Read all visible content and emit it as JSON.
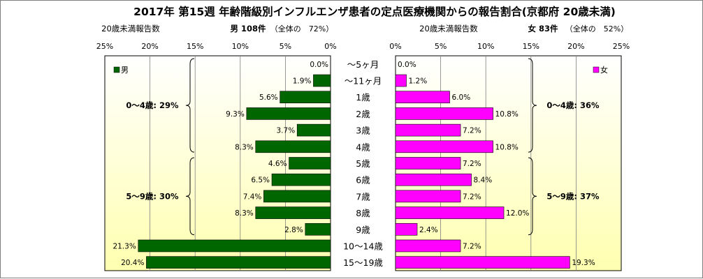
{
  "title": "2017年 第15週 年齢階級別インフルエンザ患者の定点医療機関からの報告割合(京都府 20歳未満)",
  "colors": {
    "male_bar": "#006600",
    "female_bar": "#ff00ff",
    "panel_top": "#ffffff",
    "panel_bottom": "#ffffb0",
    "frame": "#000000"
  },
  "chart_data": {
    "type": "bar",
    "orientation": "horizontal",
    "layout": "population-pyramid",
    "categories": [
      "～5ヶ月",
      "～11ヶ月",
      "1歳",
      "2歳",
      "3歳",
      "4歳",
      "5歳",
      "6歳",
      "7歳",
      "8歳",
      "9歳",
      "10～14歳",
      "15～19歳"
    ],
    "male": {
      "legend": "男",
      "axis_caption": "20歳未満報告数",
      "summary_bold": "男 108件",
      "summary_share": "（全体の　72%）",
      "xlim": [
        0,
        25
      ],
      "ticks": [
        "25%",
        "20%",
        "15%",
        "10%",
        "5%",
        "0%"
      ],
      "values": [
        0.0,
        1.9,
        5.6,
        9.3,
        3.7,
        8.3,
        4.6,
        6.5,
        7.4,
        8.3,
        2.8,
        21.3,
        20.4
      ],
      "value_labels": [
        "0.0%",
        "1.9%",
        "5.6%",
        "9.3%",
        "3.7%",
        "8.3%",
        "4.6%",
        "6.5%",
        "7.4%",
        "8.3%",
        "2.8%",
        "21.3%",
        "20.4%"
      ],
      "groups": [
        {
          "label": "0～4歳: 29%",
          "from": 0,
          "to": 5
        },
        {
          "label": "5～9歳: 30%",
          "from": 6,
          "to": 10
        }
      ]
    },
    "female": {
      "legend": "女",
      "axis_caption": "20歳未満報告数",
      "summary_bold": "女 83件",
      "summary_share": "（全体の　52%）",
      "xlim": [
        0,
        25
      ],
      "ticks": [
        "0%",
        "5%",
        "10%",
        "15%",
        "20%",
        "25%"
      ],
      "values": [
        0.0,
        1.2,
        6.0,
        10.8,
        7.2,
        10.8,
        7.2,
        8.4,
        7.2,
        12.0,
        2.4,
        7.2,
        19.3
      ],
      "value_labels": [
        "0.0%",
        "1.2%",
        "6.0%",
        "10.8%",
        "7.2%",
        "10.8%",
        "7.2%",
        "8.4%",
        "7.2%",
        "12.0%",
        "2.4%",
        "7.2%",
        "19.3%"
      ],
      "groups": [
        {
          "label": "0～4歳: 36%",
          "from": 0,
          "to": 5
        },
        {
          "label": "5～9歳: 37%",
          "from": 6,
          "to": 10
        }
      ]
    },
    "grid": true
  }
}
